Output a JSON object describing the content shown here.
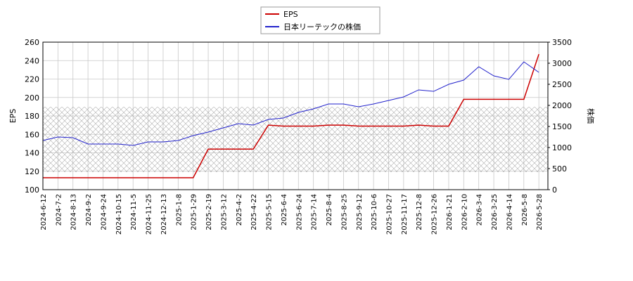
{
  "chart_data": {
    "type": "line",
    "categories": [
      "2024-6-12",
      "2024-7-2",
      "2024-8-13",
      "2024-9-2",
      "2024-9-24",
      "2024-10-15",
      "2024-11-5",
      "2024-11-25",
      "2024-12-13",
      "2025-1-8",
      "2025-1-29",
      "2025-2-19",
      "2025-3-12",
      "2025-4-2",
      "2025-4-22",
      "2025-5-15",
      "2025-6-4",
      "2025-6-24",
      "2025-7-14",
      "2025-8-4",
      "2025-8-25",
      "2025-9-12",
      "2025-10-6",
      "2025-10-27",
      "2025-11-17",
      "2025-12-8",
      "2025-12-26",
      "2026-1-21",
      "2026-2-10",
      "2026-3-4",
      "2026-3-25",
      "2026-4-14",
      "2026-5-8",
      "2026-5-28"
    ],
    "series": [
      {
        "name": "EPS",
        "color": "#cc0000",
        "values": [
          113,
          113,
          113,
          113,
          113,
          113,
          113,
          113,
          113,
          113,
          113,
          144,
          144,
          144,
          144,
          170,
          169,
          169,
          169,
          170,
          170,
          169,
          169,
          169,
          169,
          170,
          169,
          169,
          198,
          198,
          198,
          198,
          198,
          247
        ]
      },
      {
        "name": "日本リーテックの株価",
        "color": "#2222cc",
        "axis": "y2",
        "values": [
          1167,
          1250,
          1233,
          1083,
          1083,
          1083,
          1050,
          1133,
          1133,
          1167,
          1283,
          1367,
          1467,
          1567,
          1533,
          1667,
          1700,
          1833,
          1917,
          2033,
          2033,
          1967,
          2033,
          2117,
          2200,
          2367,
          2333,
          2500,
          2600,
          2917,
          2700,
          2617,
          3033,
          2783
        ]
      }
    ],
    "ylabel": "EPS",
    "y2label": "株価",
    "ylim": [
      100,
      260
    ],
    "yticks": [
      100,
      120,
      140,
      160,
      180,
      200,
      220,
      240,
      260
    ],
    "y2lim": [
      0,
      3500
    ],
    "y2ticks": [
      0,
      500,
      1000,
      1500,
      2000,
      2500,
      3000,
      3500
    ],
    "grid": true,
    "legend": "top"
  }
}
